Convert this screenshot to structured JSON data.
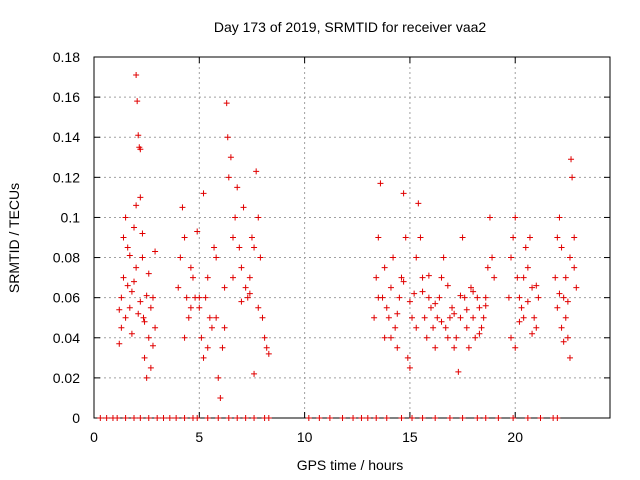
{
  "chart_data": {
    "type": "scatter",
    "title": "Day 173 of 2019, SRMTID for receiver vaa2",
    "xlabel": "GPS time / hours",
    "ylabel": "SRMTID / TECUs",
    "xlim": [
      0,
      24.5
    ],
    "ylim": [
      0,
      0.18
    ],
    "xticks": [
      0,
      5,
      10,
      15,
      20
    ],
    "xtick_labels": [
      "0",
      "5",
      "10",
      "15",
      "20"
    ],
    "yticks": [
      0,
      0.02,
      0.04,
      0.06,
      0.08,
      0.1,
      0.12,
      0.14,
      0.16,
      0.18
    ],
    "ytick_labels": [
      "0",
      "0.02",
      "0.04",
      "0.06",
      "0.08",
      "0.1",
      "0.12",
      "0.14",
      "0.16",
      "0.18"
    ],
    "grid": true,
    "marker": "+",
    "color": "#e00000",
    "series": [
      {
        "name": "SRMTID",
        "points": [
          [
            0.3,
            0.0
          ],
          [
            0.6,
            0.0
          ],
          [
            0.9,
            0.0
          ],
          [
            1.1,
            0.0
          ],
          [
            1.5,
            0.0
          ],
          [
            1.9,
            0.0
          ],
          [
            2.2,
            0.0
          ],
          [
            2.6,
            0.0
          ],
          [
            3.0,
            0.0
          ],
          [
            3.3,
            0.0
          ],
          [
            3.6,
            0.0
          ],
          [
            3.9,
            0.0
          ],
          [
            4.3,
            0.0
          ],
          [
            4.7,
            0.0
          ],
          [
            4.9,
            0.0
          ],
          [
            5.4,
            0.0
          ],
          [
            5.9,
            0.0
          ],
          [
            6.4,
            0.0
          ],
          [
            6.8,
            0.0
          ],
          [
            7.2,
            0.0
          ],
          [
            7.6,
            0.0
          ],
          [
            8.1,
            0.0
          ],
          [
            8.3,
            0.0
          ],
          [
            10.2,
            0.0
          ],
          [
            10.7,
            0.0
          ],
          [
            11.2,
            0.0
          ],
          [
            11.8,
            0.0
          ],
          [
            12.3,
            0.0
          ],
          [
            12.7,
            0.0
          ],
          [
            13.0,
            0.0
          ],
          [
            13.4,
            0.0
          ],
          [
            13.9,
            0.0
          ],
          [
            14.6,
            0.0
          ],
          [
            15.1,
            0.0
          ],
          [
            15.6,
            0.0
          ],
          [
            16.2,
            0.0
          ],
          [
            16.9,
            0.0
          ],
          [
            17.5,
            0.0
          ],
          [
            18.2,
            0.0
          ],
          [
            18.6,
            0.0
          ],
          [
            19.2,
            0.0
          ],
          [
            19.9,
            0.0
          ],
          [
            20.6,
            0.0
          ],
          [
            21.2,
            0.0
          ],
          [
            21.8,
            0.0
          ],
          [
            22.0,
            0.0
          ],
          [
            1.2,
            0.037
          ],
          [
            1.3,
            0.045
          ],
          [
            1.4,
            0.07
          ],
          [
            1.5,
            0.1
          ],
          [
            1.6,
            0.085
          ],
          [
            1.7,
            0.055
          ],
          [
            1.8,
            0.063
          ],
          [
            1.9,
            0.095
          ],
          [
            2.0,
            0.171
          ],
          [
            2.05,
            0.158
          ],
          [
            2.1,
            0.141
          ],
          [
            2.15,
            0.135
          ],
          [
            2.2,
            0.11
          ],
          [
            2.3,
            0.08
          ],
          [
            2.35,
            0.05
          ],
          [
            2.4,
            0.03
          ],
          [
            2.5,
            0.02
          ],
          [
            2.6,
            0.04
          ],
          [
            2.7,
            0.025
          ],
          [
            2.8,
            0.06
          ],
          [
            2.9,
            0.045
          ],
          [
            1.4,
            0.09
          ],
          [
            1.6,
            0.066
          ],
          [
            1.8,
            0.042
          ],
          [
            2.0,
            0.075
          ],
          [
            2.2,
            0.058
          ],
          [
            2.4,
            0.048
          ],
          [
            2.6,
            0.072
          ],
          [
            2.8,
            0.036
          ],
          [
            1.3,
            0.06
          ],
          [
            1.5,
            0.05
          ],
          [
            1.7,
            0.081
          ],
          [
            1.9,
            0.068
          ],
          [
            2.1,
            0.052
          ],
          [
            2.3,
            0.092
          ],
          [
            2.5,
            0.061
          ],
          [
            2.7,
            0.055
          ],
          [
            2.9,
            0.083
          ],
          [
            1.2,
            0.054
          ],
          [
            2.0,
            0.106
          ],
          [
            2.2,
            0.134
          ],
          [
            4.0,
            0.065
          ],
          [
            4.1,
            0.08
          ],
          [
            4.2,
            0.105
          ],
          [
            4.3,
            0.09
          ],
          [
            4.4,
            0.06
          ],
          [
            4.5,
            0.05
          ],
          [
            4.6,
            0.075
          ],
          [
            4.7,
            0.07
          ],
          [
            4.8,
            0.06
          ],
          [
            4.9,
            0.093
          ],
          [
            5.0,
            0.055
          ],
          [
            5.1,
            0.04
          ],
          [
            5.2,
            0.03
          ],
          [
            5.3,
            0.06
          ],
          [
            5.4,
            0.07
          ],
          [
            5.5,
            0.05
          ],
          [
            5.6,
            0.045
          ],
          [
            5.7,
            0.085
          ],
          [
            5.8,
            0.08
          ],
          [
            5.9,
            0.02
          ],
          [
            6.0,
            0.01
          ],
          [
            6.1,
            0.035
          ],
          [
            6.2,
            0.065
          ],
          [
            6.3,
            0.157
          ],
          [
            6.35,
            0.14
          ],
          [
            6.4,
            0.12
          ],
          [
            6.5,
            0.13
          ],
          [
            6.6,
            0.09
          ],
          [
            6.7,
            0.1
          ],
          [
            6.8,
            0.115
          ],
          [
            6.9,
            0.085
          ],
          [
            7.0,
            0.075
          ],
          [
            7.1,
            0.105
          ],
          [
            7.2,
            0.065
          ],
          [
            7.3,
            0.06
          ],
          [
            7.4,
            0.07
          ],
          [
            7.5,
            0.09
          ],
          [
            7.6,
            0.085
          ],
          [
            7.7,
            0.123
          ],
          [
            7.8,
            0.1
          ],
          [
            7.9,
            0.08
          ],
          [
            8.0,
            0.05
          ],
          [
            8.1,
            0.04
          ],
          [
            8.2,
            0.035
          ],
          [
            8.3,
            0.032
          ],
          [
            4.3,
            0.04
          ],
          [
            4.6,
            0.055
          ],
          [
            5.0,
            0.06
          ],
          [
            5.4,
            0.035
          ],
          [
            5.8,
            0.05
          ],
          [
            6.2,
            0.045
          ],
          [
            6.6,
            0.07
          ],
          [
            7.0,
            0.058
          ],
          [
            7.4,
            0.062
          ],
          [
            7.8,
            0.055
          ],
          [
            5.2,
            0.112
          ],
          [
            7.6,
            0.022
          ],
          [
            13.3,
            0.05
          ],
          [
            13.4,
            0.07
          ],
          [
            13.5,
            0.09
          ],
          [
            13.6,
            0.117
          ],
          [
            13.7,
            0.06
          ],
          [
            13.8,
            0.04
          ],
          [
            13.9,
            0.055
          ],
          [
            14.0,
            0.05
          ],
          [
            14.1,
            0.065
          ],
          [
            14.2,
            0.08
          ],
          [
            14.3,
            0.045
          ],
          [
            14.4,
            0.035
          ],
          [
            14.5,
            0.06
          ],
          [
            14.6,
            0.07
          ],
          [
            14.7,
            0.112
          ],
          [
            14.8,
            0.09
          ],
          [
            14.9,
            0.03
          ],
          [
            15.0,
            0.025
          ],
          [
            15.1,
            0.05
          ],
          [
            15.2,
            0.062
          ],
          [
            15.3,
            0.08
          ],
          [
            15.4,
            0.107
          ],
          [
            15.5,
            0.09
          ],
          [
            15.6,
            0.07
          ],
          [
            15.7,
            0.05
          ],
          [
            15.8,
            0.04
          ],
          [
            15.9,
            0.06
          ],
          [
            16.0,
            0.055
          ],
          [
            16.1,
            0.045
          ],
          [
            16.2,
            0.035
          ],
          [
            16.3,
            0.05
          ],
          [
            16.4,
            0.06
          ],
          [
            16.5,
            0.07
          ],
          [
            16.6,
            0.08
          ],
          [
            16.7,
            0.045
          ],
          [
            16.8,
            0.04
          ],
          [
            16.9,
            0.05
          ],
          [
            17.0,
            0.055
          ],
          [
            17.1,
            0.035
          ],
          [
            17.2,
            0.04
          ],
          [
            17.3,
            0.023
          ],
          [
            17.4,
            0.05
          ],
          [
            17.5,
            0.09
          ],
          [
            17.6,
            0.06
          ],
          [
            17.7,
            0.045
          ],
          [
            17.8,
            0.035
          ],
          [
            17.9,
            0.065
          ],
          [
            18.0,
            0.05
          ],
          [
            18.1,
            0.04
          ],
          [
            18.2,
            0.06
          ],
          [
            18.3,
            0.055
          ],
          [
            18.4,
            0.045
          ],
          [
            18.5,
            0.05
          ],
          [
            18.6,
            0.06
          ],
          [
            18.7,
            0.075
          ],
          [
            18.8,
            0.1
          ],
          [
            18.9,
            0.08
          ],
          [
            19.0,
            0.07
          ],
          [
            13.5,
            0.06
          ],
          [
            13.8,
            0.075
          ],
          [
            14.1,
            0.04
          ],
          [
            14.4,
            0.052
          ],
          [
            14.7,
            0.068
          ],
          [
            15.0,
            0.058
          ],
          [
            15.3,
            0.045
          ],
          [
            15.6,
            0.063
          ],
          [
            15.9,
            0.071
          ],
          [
            16.2,
            0.057
          ],
          [
            16.5,
            0.048
          ],
          [
            16.8,
            0.066
          ],
          [
            17.1,
            0.052
          ],
          [
            17.4,
            0.061
          ],
          [
            17.7,
            0.054
          ],
          [
            18.0,
            0.063
          ],
          [
            18.3,
            0.042
          ],
          [
            18.6,
            0.056
          ],
          [
            19.7,
            0.06
          ],
          [
            19.8,
            0.08
          ],
          [
            19.9,
            0.09
          ],
          [
            20.0,
            0.1
          ],
          [
            20.1,
            0.07
          ],
          [
            20.2,
            0.06
          ],
          [
            20.3,
            0.055
          ],
          [
            20.4,
            0.05
          ],
          [
            20.5,
            0.085
          ],
          [
            20.6,
            0.075
          ],
          [
            20.7,
            0.09
          ],
          [
            20.8,
            0.065
          ],
          [
            20.9,
            0.05
          ],
          [
            21.0,
            0.045
          ],
          [
            21.1,
            0.06
          ],
          [
            19.8,
            0.04
          ],
          [
            20.0,
            0.035
          ],
          [
            20.2,
            0.048
          ],
          [
            20.4,
            0.07
          ],
          [
            20.6,
            0.058
          ],
          [
            20.8,
            0.042
          ],
          [
            21.0,
            0.066
          ],
          [
            21.9,
            0.07
          ],
          [
            22.0,
            0.09
          ],
          [
            22.1,
            0.1
          ],
          [
            22.2,
            0.085
          ],
          [
            22.3,
            0.06
          ],
          [
            22.4,
            0.05
          ],
          [
            22.5,
            0.04
          ],
          [
            22.6,
            0.08
          ],
          [
            22.65,
            0.129
          ],
          [
            22.7,
            0.12
          ],
          [
            22.8,
            0.09
          ],
          [
            22.9,
            0.065
          ],
          [
            22.0,
            0.055
          ],
          [
            22.2,
            0.045
          ],
          [
            22.4,
            0.07
          ],
          [
            22.6,
            0.03
          ],
          [
            22.8,
            0.075
          ],
          [
            22.1,
            0.062
          ],
          [
            22.3,
            0.038
          ],
          [
            22.5,
            0.058
          ]
        ]
      }
    ]
  }
}
